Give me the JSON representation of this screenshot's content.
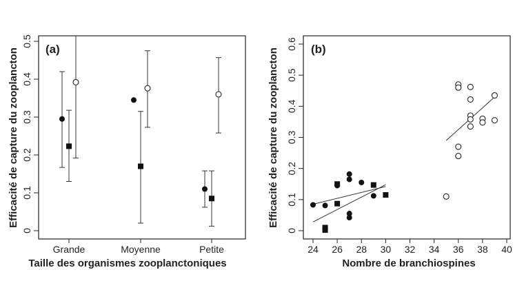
{
  "chart_data": [
    {
      "type": "scatter",
      "panel_label": "(a)",
      "xlabel": "Taille des organismes zooplanctoniques",
      "ylabel": "Efficacité de capture du zooplancton",
      "categories": [
        "Grande",
        "Moyenne",
        "Petite"
      ],
      "ylim": [
        0,
        0.5
      ],
      "yticks": [
        "0",
        "0.1",
        "0.2",
        "0.3",
        "0.4",
        "0.5"
      ],
      "series": [
        {
          "marker": "filled-circle",
          "points": [
            {
              "category": "Grande",
              "y": 0.295,
              "err_low": 0.167,
              "err_high": 0.42
            },
            {
              "category": "Moyenne",
              "y": 0.345,
              "err_low": null,
              "err_high": null
            },
            {
              "category": "Petite",
              "y": 0.11,
              "err_low": 0.062,
              "err_high": 0.158
            }
          ]
        },
        {
          "marker": "filled-square",
          "points": [
            {
              "category": "Grande",
              "y": 0.223,
              "err_low": 0.13,
              "err_high": 0.318
            },
            {
              "category": "Moyenne",
              "y": 0.17,
              "err_low": 0.02,
              "err_high": 0.315
            },
            {
              "category": "Petite",
              "y": 0.085,
              "err_low": 0.012,
              "err_high": 0.158
            }
          ]
        },
        {
          "marker": "open-circle",
          "points": [
            {
              "category": "Grande",
              "y": 0.392,
              "err_low": 0.192,
              "err_high": 0.54
            },
            {
              "category": "Moyenne",
              "y": 0.376,
              "err_low": 0.273,
              "err_high": 0.475
            },
            {
              "category": "Petite",
              "y": 0.36,
              "err_low": 0.258,
              "err_high": 0.457
            }
          ]
        }
      ]
    },
    {
      "type": "scatter",
      "panel_label": "(b)",
      "xlabel": "Nombre de branchiospines",
      "ylabel": "Efficacité de capture du zooplancton",
      "xlim": [
        24,
        40
      ],
      "ylim": [
        0,
        0.6
      ],
      "xticks": [
        "24",
        "26",
        "28",
        "30",
        "32",
        "34",
        "36",
        "38",
        "40"
      ],
      "yticks": [
        "0",
        "0.1",
        "0.2",
        "0.3",
        "0.4",
        "0.5",
        "0.6"
      ],
      "series": [
        {
          "marker": "filled-circle",
          "points": [
            [
              24,
              0.083
            ],
            [
              25,
              0.081
            ],
            [
              26,
              0.145
            ],
            [
              27,
              0.182
            ],
            [
              27,
              0.165
            ],
            [
              27,
              0.055
            ],
            [
              27,
              0.042
            ],
            [
              28,
              0.155
            ],
            [
              29,
              0.112
            ]
          ]
        },
        {
          "marker": "filled-square",
          "points": [
            [
              25,
              0.01
            ],
            [
              25,
              0.002
            ],
            [
              26,
              0.15
            ],
            [
              26,
              0.087
            ],
            [
              29,
              0.147
            ],
            [
              30,
              0.115
            ]
          ]
        },
        {
          "marker": "open-circle",
          "points": [
            [
              35,
              0.11
            ],
            [
              36,
              0.47
            ],
            [
              36,
              0.46
            ],
            [
              36,
              0.27
            ],
            [
              36,
              0.24
            ],
            [
              37,
              0.462
            ],
            [
              37,
              0.422
            ],
            [
              37,
              0.37
            ],
            [
              37,
              0.358
            ],
            [
              37,
              0.335
            ],
            [
              38,
              0.36
            ],
            [
              38,
              0.348
            ],
            [
              39,
              0.435
            ],
            [
              39,
              0.355
            ]
          ]
        }
      ],
      "fit_lines": [
        {
          "from": [
            24,
            0.085
          ],
          "to": [
            30,
            0.142
          ]
        },
        {
          "from": [
            24,
            0.028
          ],
          "to": [
            30,
            0.148
          ]
        },
        {
          "from": [
            35,
            0.29
          ],
          "to": [
            39,
            0.43
          ]
        }
      ]
    }
  ]
}
